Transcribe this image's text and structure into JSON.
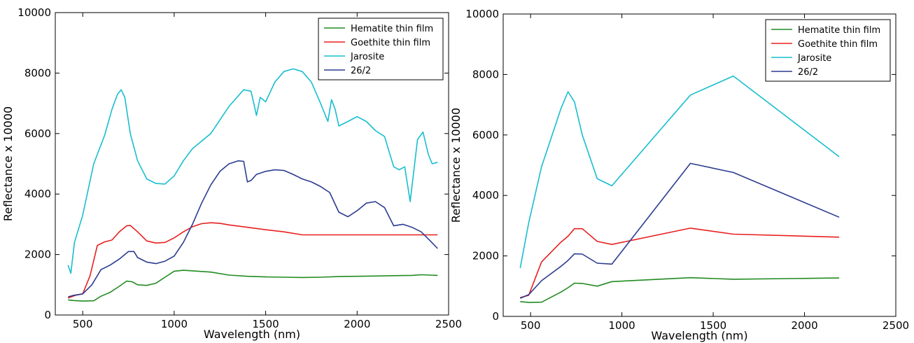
{
  "chart_data": [
    {
      "type": "line",
      "title": "",
      "xlabel": "Wavelength (nm)",
      "ylabel": "Reflectance x 10000",
      "xlim": [
        350,
        2500
      ],
      "ylim": [
        0,
        10000
      ],
      "xticks": [
        500,
        1000,
        1500,
        2000,
        2500
      ],
      "yticks": [
        0,
        2000,
        4000,
        6000,
        8000,
        10000
      ],
      "grid": false,
      "legend_position": "top-right",
      "series": [
        {
          "name": "Hematite thin film",
          "color": "#228B22",
          "x": [
            420,
            450,
            500,
            560,
            600,
            650,
            700,
            740,
            770,
            800,
            850,
            900,
            950,
            1000,
            1050,
            1100,
            1200,
            1300,
            1400,
            1500,
            1600,
            1700,
            1800,
            1900,
            2000,
            2100,
            2200,
            2300,
            2350,
            2400,
            2440
          ],
          "y": [
            500,
            480,
            460,
            470,
            620,
            750,
            950,
            1120,
            1100,
            1000,
            980,
            1050,
            1250,
            1450,
            1480,
            1460,
            1420,
            1320,
            1280,
            1260,
            1250,
            1240,
            1250,
            1270,
            1280,
            1290,
            1300,
            1310,
            1330,
            1320,
            1310
          ]
        },
        {
          "name": "Goethite thin film",
          "color": "#E8201F",
          "x": [
            420,
            460,
            500,
            540,
            580,
            620,
            660,
            700,
            740,
            760,
            800,
            850,
            900,
            950,
            1000,
            1050,
            1100,
            1150,
            1200,
            1250,
            1300,
            1400,
            1500,
            1600,
            1700,
            1800,
            1900,
            2000,
            2100,
            2200,
            2300,
            2400,
            2440
          ],
          "y": [
            560,
            650,
            700,
            1300,
            2300,
            2420,
            2480,
            2750,
            2950,
            2960,
            2750,
            2450,
            2380,
            2400,
            2550,
            2750,
            2920,
            3020,
            3050,
            3030,
            2980,
            2900,
            2820,
            2750,
            2650,
            2650,
            2650,
            2650,
            2650,
            2650,
            2650,
            2650,
            2650
          ]
        },
        {
          "name": "Jarosite",
          "color": "#17BECF",
          "x": [
            420,
            435,
            455,
            500,
            560,
            620,
            660,
            690,
            710,
            730,
            760,
            800,
            850,
            900,
            950,
            1000,
            1050,
            1100,
            1200,
            1300,
            1380,
            1420,
            1450,
            1470,
            1500,
            1550,
            1600,
            1650,
            1700,
            1750,
            1800,
            1840,
            1860,
            1880,
            1900,
            1950,
            2000,
            2050,
            2100,
            2150,
            2200,
            2230,
            2260,
            2290,
            2330,
            2360,
            2390,
            2410,
            2440
          ],
          "y": [
            1650,
            1380,
            2400,
            3300,
            5000,
            5950,
            6800,
            7300,
            7450,
            7200,
            6000,
            5100,
            4500,
            4350,
            4330,
            4600,
            5100,
            5500,
            6000,
            6900,
            7450,
            7400,
            6600,
            7200,
            7050,
            7700,
            8050,
            8140,
            8050,
            7700,
            7000,
            6400,
            7120,
            6800,
            6250,
            6400,
            6560,
            6400,
            6100,
            5900,
            4900,
            4800,
            4900,
            3750,
            5800,
            6050,
            5300,
            5000,
            5050
          ]
        },
        {
          "name": "26/2",
          "color": "#2B3C8F",
          "x": [
            420,
            450,
            500,
            550,
            600,
            650,
            700,
            750,
            780,
            800,
            850,
            900,
            950,
            1000,
            1050,
            1100,
            1150,
            1200,
            1250,
            1300,
            1350,
            1380,
            1400,
            1420,
            1450,
            1500,
            1550,
            1600,
            1650,
            1700,
            1750,
            1800,
            1850,
            1900,
            1950,
            2000,
            2050,
            2100,
            2150,
            2200,
            2250,
            2300,
            2350,
            2400,
            2440
          ],
          "y": [
            600,
            650,
            700,
            1000,
            1500,
            1650,
            1850,
            2100,
            2100,
            1900,
            1750,
            1700,
            1780,
            1950,
            2400,
            3000,
            3700,
            4300,
            4750,
            5000,
            5100,
            5080,
            4400,
            4450,
            4650,
            4750,
            4800,
            4780,
            4650,
            4500,
            4400,
            4250,
            4050,
            3400,
            3250,
            3450,
            3700,
            3750,
            3550,
            2950,
            3000,
            2900,
            2750,
            2450,
            2200
          ]
        }
      ]
    },
    {
      "type": "line",
      "title": "",
      "xlabel": "Wavelength (nm)",
      "ylabel": "Reflectance x 10000",
      "xlim": [
        350,
        2500
      ],
      "ylim": [
        0,
        10000
      ],
      "xticks": [
        500,
        1000,
        1500,
        2000,
        2500
      ],
      "yticks": [
        0,
        2000,
        4000,
        6000,
        8000,
        10000
      ],
      "grid": false,
      "legend_position": "top-right",
      "series": [
        {
          "name": "Hematite thin film",
          "color": "#228B22",
          "x": [
            443,
            490,
            560,
            665,
            705,
            740,
            783,
            865,
            945,
            1375,
            1610,
            2190
          ],
          "y": [
            490,
            460,
            470,
            800,
            950,
            1100,
            1090,
            1000,
            1150,
            1280,
            1230,
            1270
          ]
        },
        {
          "name": "Goethite thin film",
          "color": "#E8201F",
          "x": [
            443,
            490,
            560,
            665,
            705,
            740,
            783,
            865,
            945,
            1375,
            1610,
            2190
          ],
          "y": [
            620,
            700,
            1800,
            2450,
            2650,
            2900,
            2900,
            2480,
            2380,
            2920,
            2720,
            2620
          ]
        },
        {
          "name": "Jarosite",
          "color": "#17BECF",
          "x": [
            443,
            490,
            560,
            665,
            705,
            740,
            783,
            865,
            945,
            1375,
            1610,
            2190
          ],
          "y": [
            1600,
            3100,
            4950,
            6850,
            7430,
            7100,
            6000,
            4550,
            4320,
            7320,
            7950,
            5280
          ]
        },
        {
          "name": "26/2",
          "color": "#2B3C8F",
          "x": [
            443,
            490,
            560,
            665,
            705,
            740,
            783,
            865,
            945,
            1375,
            1610,
            2190
          ],
          "y": [
            600,
            720,
            1180,
            1650,
            1850,
            2070,
            2060,
            1760,
            1730,
            5060,
            4760,
            3280
          ]
        }
      ]
    }
  ]
}
